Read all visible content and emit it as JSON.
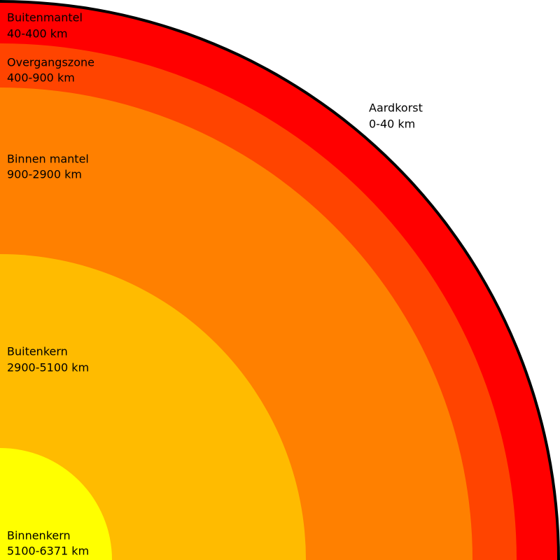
{
  "layers": [
    {
      "name": "Aardkorst",
      "range": "0-40 km"
    },
    {
      "name": "Buitenmantel",
      "range": "40-400 km"
    },
    {
      "name": "Overgangszone",
      "range": "400-900 km"
    },
    {
      "name": "Binnen mantel",
      "range": "900-2900 km"
    },
    {
      "name": "Buitenkern",
      "range": "2900-5100 km"
    },
    {
      "name": "Binnenkern",
      "range": "5100-6371 km"
    }
  ]
}
